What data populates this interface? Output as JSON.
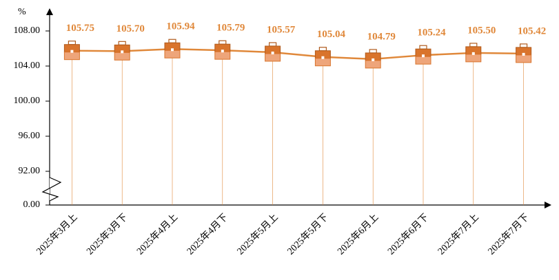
{
  "chart_data": {
    "type": "line",
    "y_label": "%",
    "categories": [
      "2025年3月上",
      "2025年3月下",
      "2025年4月上",
      "2025年4月下",
      "2025年5月上",
      "2025年5月下",
      "2025年6月上",
      "2025年6月下",
      "2025年7月上",
      "2025年7月下"
    ],
    "series": [
      {
        "color": "#e0883a",
        "values": [
          105.75,
          105.7,
          105.94,
          105.79,
          105.57,
          105.04,
          104.79,
          105.24,
          105.5,
          105.42
        ],
        "value_labels": [
          "105.75",
          "105.70",
          "105.94",
          "105.79",
          "105.57",
          "105.04",
          "104.79",
          "105.24",
          "105.50",
          "105.42"
        ]
      }
    ],
    "ylim": [
      0,
      108
    ],
    "axis_break": [
      0,
      92
    ],
    "yticks": [
      {
        "value": 0,
        "label": "0.00"
      },
      {
        "value": 92,
        "label": "92.00"
      },
      {
        "value": 96,
        "label": "96.00"
      },
      {
        "value": 100,
        "label": "100.00"
      },
      {
        "value": 104,
        "label": "104.00"
      },
      {
        "value": 108,
        "label": "108.00"
      }
    ]
  }
}
